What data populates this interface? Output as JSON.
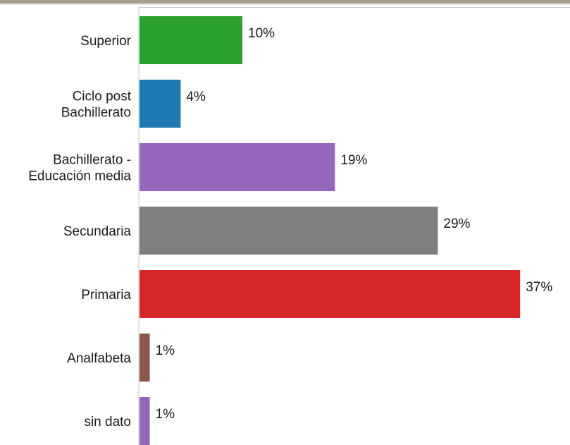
{
  "chart_data": {
    "type": "bar",
    "orientation": "horizontal",
    "categories": [
      "Superior",
      "Ciclo post Bachillerato",
      "Bachillerato - Educación media",
      "Secundaria",
      "Primaria",
      "Analfabeta",
      "sin dato"
    ],
    "values": [
      10,
      4,
      19,
      29,
      37,
      1,
      1
    ],
    "value_labels": [
      "10%",
      "4%",
      "19%",
      "29%",
      "37%",
      "1%",
      "1%"
    ],
    "colors": [
      "#2ca02c",
      "#1f77b4",
      "#9467bd",
      "#7f7f7f",
      "#d62728",
      "#8c564b",
      "#9467bd"
    ],
    "xlim": [
      0,
      37
    ],
    "unit": "%",
    "grid": false,
    "legend": "none"
  },
  "colors": {
    "top_border": "#a59f8c",
    "axis": "#bfbfbf"
  }
}
